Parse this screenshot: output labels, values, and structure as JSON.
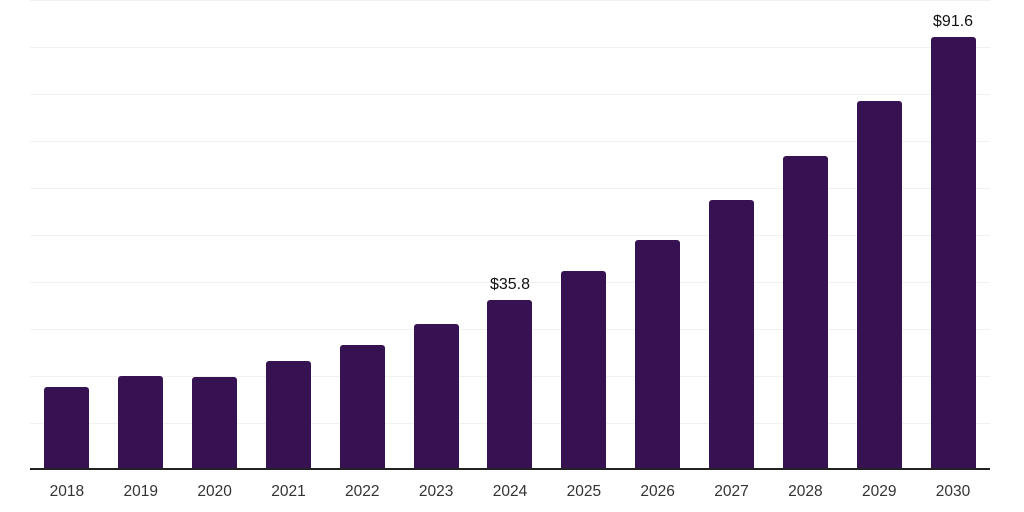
{
  "chart_data": {
    "type": "bar",
    "title": "",
    "xlabel": "",
    "ylabel": "",
    "categories": [
      "2018",
      "2019",
      "2020",
      "2021",
      "2022",
      "2023",
      "2024",
      "2025",
      "2026",
      "2027",
      "2028",
      "2029",
      "2030"
    ],
    "values": [
      17.2,
      19.6,
      19.4,
      22.8,
      26.2,
      30.6,
      35.8,
      41.9,
      48.6,
      57.0,
      66.4,
      78.1,
      91.6
    ],
    "data_labels": [
      "",
      "",
      "",
      "",
      "",
      "",
      "$35.8",
      "",
      "",
      "",
      "",
      "",
      "$91.6"
    ],
    "ylim": [
      0,
      100
    ],
    "grid_interval": 10,
    "grid_visible": true,
    "legend_position": "none",
    "colors": {
      "bar": "#371253",
      "gridline": "#f0f0f0",
      "axis_line": "#222222",
      "tick_label": "#333333",
      "value_label": "#111111",
      "background": "#ffffff"
    }
  }
}
